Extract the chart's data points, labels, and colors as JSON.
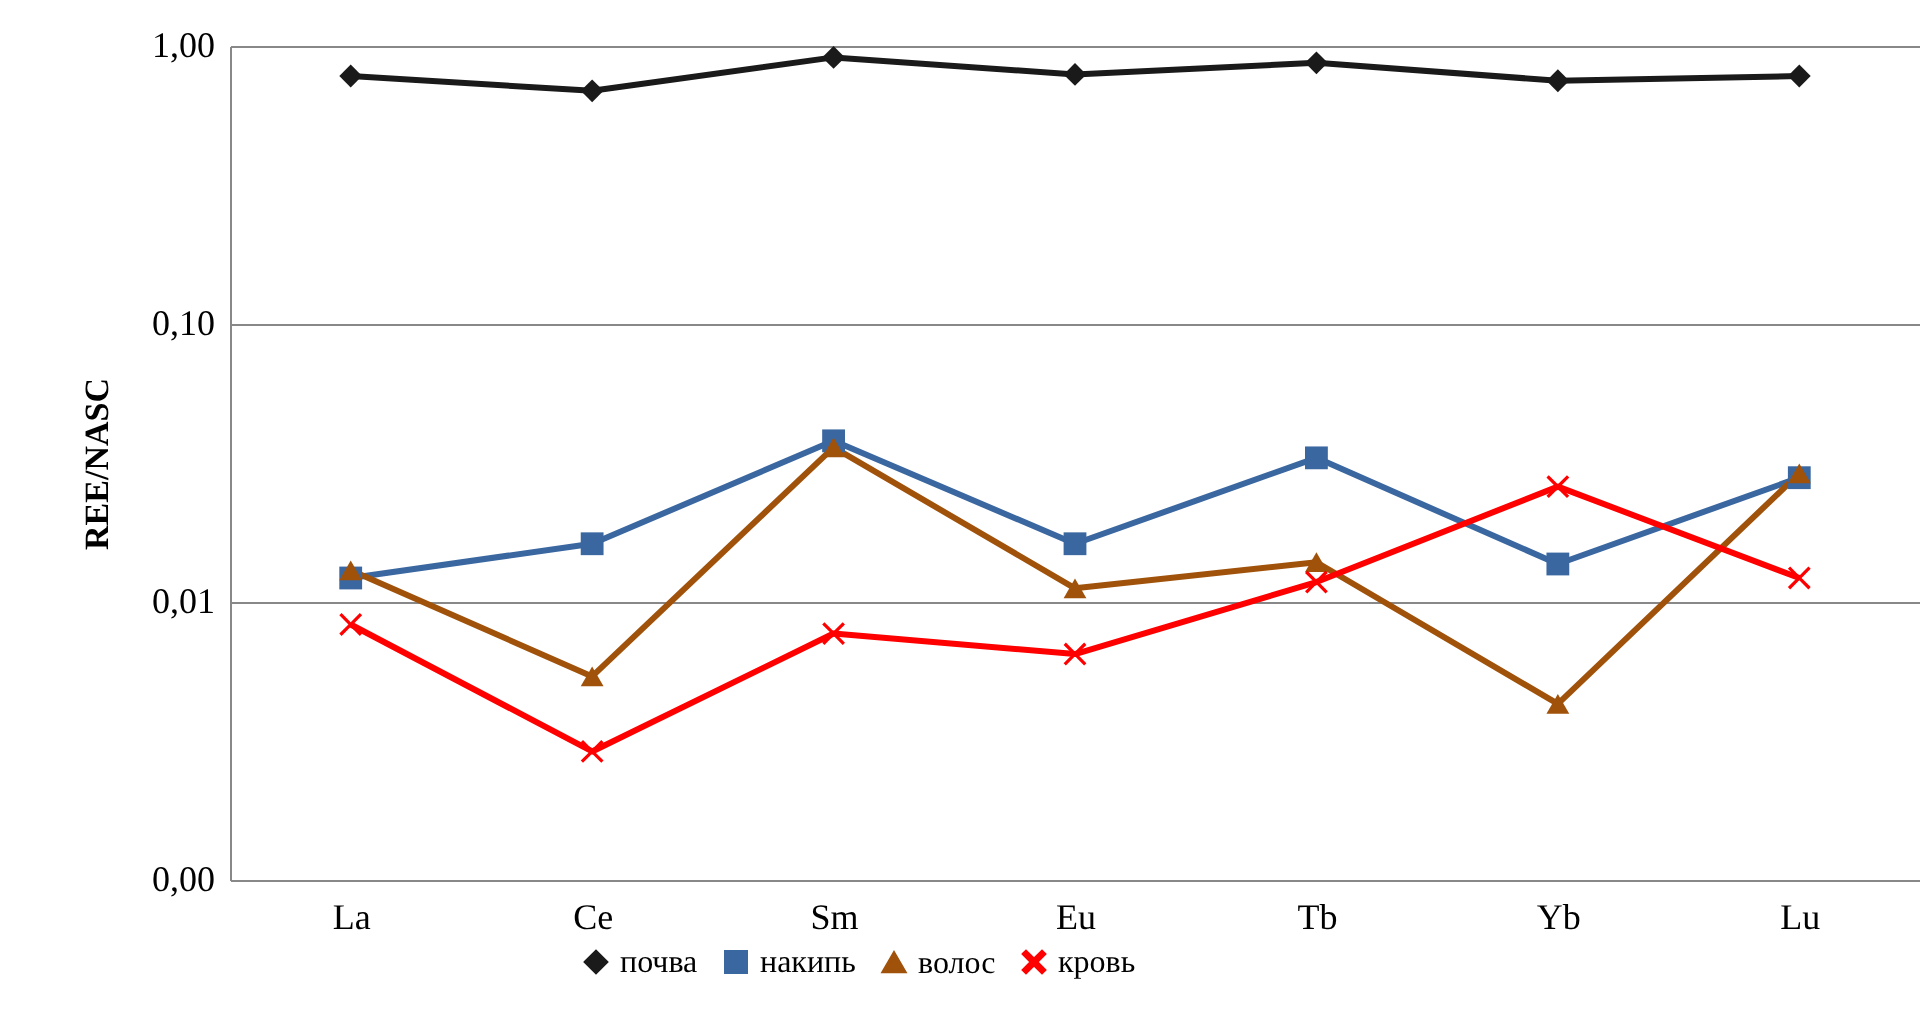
{
  "chart_data": {
    "type": "line",
    "ylabel": "REE/NASC",
    "categories": [
      "La",
      "Ce",
      "Sm",
      "Eu",
      "Tb",
      "Yb",
      "Lu"
    ],
    "log": "y",
    "ylim": [
      0.001,
      1
    ],
    "yticks": [
      {
        "value": 0.001,
        "label": "0,00"
      },
      {
        "value": 0.01,
        "label": "0,01"
      },
      {
        "value": 0.1,
        "label": "0,10"
      },
      {
        "value": 1,
        "label": "1,00"
      }
    ],
    "grid": "y",
    "legend": "bottom",
    "line_style": "solid",
    "series": [
      {
        "name": "почва",
        "color": "#1a1a1a",
        "marker": "diamond",
        "values": [
          0.78,
          0.69,
          0.91,
          0.79,
          0.87,
          0.75,
          0.78
        ]
      },
      {
        "name": "накипь",
        "color": "#3a67a0",
        "marker": "square",
        "values": [
          0.0122,
          0.0162,
          0.038,
          0.0162,
          0.033,
          0.0137,
          0.028
        ]
      },
      {
        "name": "волос",
        "color": "#a0520a",
        "marker": "triangle",
        "values": [
          0.013,
          0.0054,
          0.036,
          0.0112,
          0.0139,
          0.0043,
          0.029
        ]
      },
      {
        "name": "кровь",
        "color": "#ff0000",
        "marker": "cross",
        "values": [
          0.0083,
          0.0029,
          0.0077,
          0.0065,
          0.0118,
          0.026,
          0.0122
        ]
      }
    ]
  }
}
